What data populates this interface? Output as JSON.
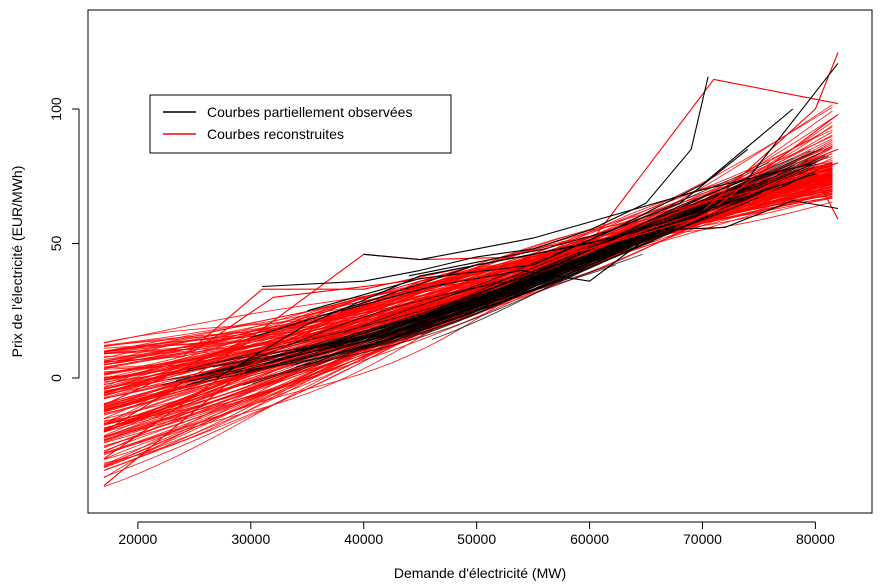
{
  "chart_data": {
    "type": "line",
    "title": "",
    "xlabel": "Demande d'électricité (MW)",
    "ylabel": "Prix de l'électricité (EUR/MWh)",
    "xlim": [
      17000,
      82000
    ],
    "ylim": [
      -42,
      122
    ],
    "xticks": [
      "20000",
      "30000",
      "40000",
      "50000",
      "60000",
      "70000",
      "80000"
    ],
    "yticks": [
      "0",
      "50",
      "100"
    ],
    "grid": false,
    "legend_position": "top-left",
    "colors": {
      "observed": "#000000",
      "reconstructed": "#ff0000"
    },
    "series": [
      {
        "name": "Courbes partiellement observées",
        "color": "#000000",
        "curves": [
          {
            "x": [
              31000,
              40000,
              45000,
              50000,
              55000,
              60000,
              65000,
              69000,
              70500
            ],
            "y": [
              34,
              36,
              40,
              45,
              48,
              55,
              65,
              85,
              112
            ]
          },
          {
            "x": [
              27000,
              35000,
              45000,
              55000,
              62000,
              68000,
              74000,
              82000
            ],
            "y": [
              0,
              20,
              38,
              46,
              52,
              64,
              74,
              117
            ]
          },
          {
            "x": [
              40000,
              45000,
              50000,
              55000,
              60000,
              70000,
              80000
            ],
            "y": [
              46,
              44,
              48,
              52,
              58,
              70,
              80
            ]
          },
          {
            "x": [
              35000,
              45000,
              55000,
              62000,
              70000,
              78000
            ],
            "y": [
              25,
              37,
              42,
              55,
              72,
              100
            ]
          },
          {
            "x": [
              44000,
              50000,
              56000,
              62000,
              68000,
              74000
            ],
            "y": [
              38,
              43,
              48,
              55,
              65,
              85
            ]
          },
          {
            "x": [
              30000,
              40000,
              50000,
              60000,
              70000,
              80000
            ],
            "y": [
              15,
              28,
              42,
              50,
              62,
              76
            ]
          },
          {
            "x": [
              38000,
              46000,
              54000,
              60000,
              66000,
              72000,
              78000,
              82000
            ],
            "y": [
              25,
              34,
              40,
              36,
              55,
              56,
              66,
              63
            ]
          }
        ]
      },
      {
        "name": "Courbes reconstruites",
        "color": "#ff0000",
        "curves": [
          {
            "x": [
              17000,
              30000,
              40000,
              50000,
              60000,
              71000,
              82000
            ],
            "y": [
              -20,
              14,
              30,
              42,
              50,
              111,
              102
            ]
          },
          {
            "x": [
              17000,
              30000,
              40000,
              50000,
              60000,
              70000,
              80000,
              82000
            ],
            "y": [
              -40,
              5,
              28,
              40,
              48,
              62,
              100,
              121
            ]
          },
          {
            "x": [
              17000,
              25000,
              32000,
              42000,
              50000,
              60000,
              70000,
              82000
            ],
            "y": [
              5,
              10,
              30,
              35,
              40,
              48,
              60,
              98
            ]
          },
          {
            "x": [
              17000,
              24000,
              31000,
              40000,
              50000,
              60000,
              70000,
              82000
            ],
            "y": [
              6,
              8,
              33,
              33,
              42,
              50,
              65,
              85
            ]
          },
          {
            "x": [
              17000,
              30000,
              40000,
              45000,
              55000,
              65000,
              75000,
              82000
            ],
            "y": [
              -10,
              15,
              46,
              44,
              45,
              60,
              70,
              80
            ]
          },
          {
            "x": [
              17000,
              30000,
              45000,
              60000,
              70000,
              80000,
              82000
            ],
            "y": [
              -30,
              8,
              36,
              48,
              60,
              75,
              59
            ]
          }
        ]
      }
    ]
  }
}
